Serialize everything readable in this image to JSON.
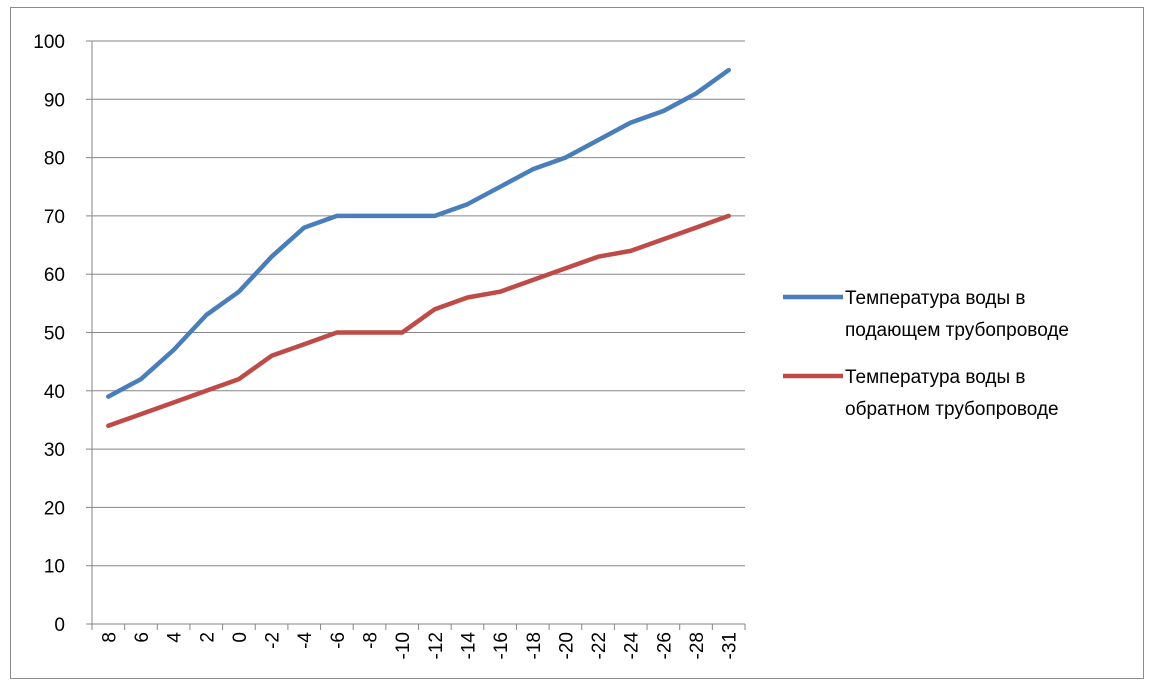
{
  "chart_data": {
    "type": "line",
    "categories": [
      "8",
      "6",
      "4",
      "2",
      "0",
      "-2",
      "-4",
      "-6",
      "-8",
      "-10",
      "-12",
      "-14",
      "-16",
      "-18",
      "-20",
      "-22",
      "-24",
      "-26",
      "-28",
      "-31"
    ],
    "series": [
      {
        "name": "Температура воды в подающем трубопроводе",
        "legend_lines": [
          "Температура воды в",
          "подающем трубопроводе"
        ],
        "color": "#4a7ebb",
        "values": [
          39,
          42,
          47,
          53,
          57,
          63,
          68,
          70,
          70,
          70,
          70,
          72,
          75,
          78,
          80,
          83,
          86,
          88,
          91,
          95
        ]
      },
      {
        "name": "Температура воды в обратном трубопроводе",
        "legend_lines": [
          "Температура воды в",
          "обратном трубопроводе"
        ],
        "color": "#be4b48",
        "values": [
          34,
          36,
          38,
          40,
          42,
          46,
          48,
          50,
          50,
          50,
          54,
          56,
          57,
          59,
          61,
          63,
          64,
          66,
          68,
          70
        ]
      }
    ],
    "ylim": [
      0,
      100
    ],
    "yticks": [
      0,
      10,
      20,
      30,
      40,
      50,
      60,
      70,
      80,
      90,
      100
    ],
    "grid": true,
    "legend": "right",
    "title": "",
    "xlabel": "",
    "ylabel": ""
  }
}
